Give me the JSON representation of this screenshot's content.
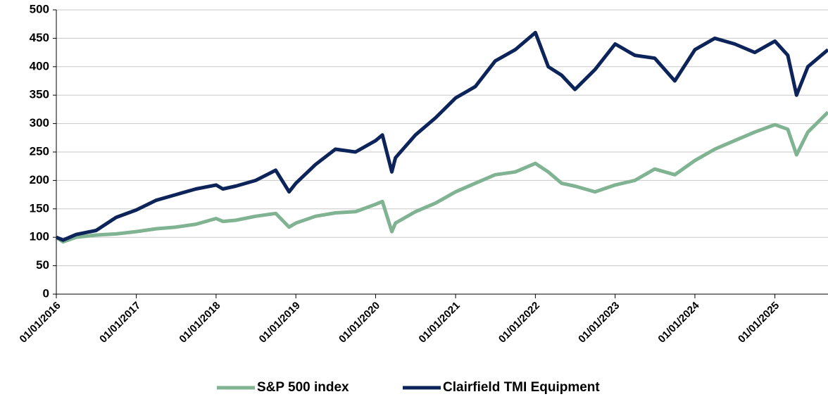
{
  "chart_data": {
    "type": "line",
    "x": [
      "01/01/2016",
      "01/02/2016",
      "01/04/2016",
      "01/07/2016",
      "01/10/2016",
      "01/01/2017",
      "01/04/2017",
      "01/07/2017",
      "01/10/2017",
      "01/01/2018",
      "01/02/2018",
      "01/04/2018",
      "01/07/2018",
      "01/10/2018",
      "01/12/2018",
      "01/01/2019",
      "01/04/2019",
      "01/07/2019",
      "01/10/2019",
      "01/01/2020",
      "01/02/2020",
      "15/03/2020",
      "01/04/2020",
      "01/07/2020",
      "01/10/2020",
      "01/01/2021",
      "01/04/2021",
      "01/07/2021",
      "01/10/2021",
      "01/01/2022",
      "01/03/2022",
      "01/05/2022",
      "01/07/2022",
      "01/10/2022",
      "01/01/2023",
      "01/04/2023",
      "01/07/2023",
      "01/10/2023",
      "01/01/2024",
      "01/04/2024",
      "01/07/2024",
      "01/10/2024",
      "01/01/2025",
      "01/03/2025",
      "10/04/2025",
      "01/06/2025",
      "01/09/2025"
    ],
    "series": [
      {
        "name": "S&P 500 index",
        "color": "#7fb391",
        "values": [
          100,
          92,
          100,
          104,
          106,
          110,
          115,
          118,
          123,
          133,
          128,
          130,
          137,
          142,
          118,
          125,
          137,
          143,
          145,
          158,
          163,
          110,
          125,
          145,
          160,
          180,
          195,
          210,
          215,
          230,
          215,
          195,
          190,
          180,
          192,
          200,
          220,
          210,
          235,
          255,
          270,
          285,
          298,
          290,
          245,
          285,
          320
        ]
      },
      {
        "name": "Clairfield TMI Equipment",
        "color": "#0c2459",
        "values": [
          100,
          95,
          105,
          112,
          135,
          148,
          165,
          175,
          185,
          192,
          185,
          190,
          200,
          218,
          180,
          195,
          228,
          255,
          250,
          270,
          280,
          215,
          240,
          280,
          310,
          345,
          365,
          410,
          430,
          460,
          400,
          385,
          360,
          395,
          440,
          420,
          415,
          375,
          430,
          450,
          440,
          425,
          445,
          420,
          350,
          400,
          430
        ]
      }
    ],
    "xlim": [
      "01/01/2016",
      "01/09/2025"
    ],
    "xticks": [
      "01/01/2016",
      "01/01/2017",
      "01/01/2018",
      "01/01/2019",
      "01/01/2020",
      "01/01/2021",
      "01/01/2022",
      "01/01/2023",
      "01/01/2024",
      "01/01/2025"
    ],
    "ylim": [
      0,
      500
    ],
    "yticks": [
      0,
      50,
      100,
      150,
      200,
      250,
      300,
      350,
      400,
      450,
      500
    ],
    "grid": true,
    "legend": "bottom"
  }
}
